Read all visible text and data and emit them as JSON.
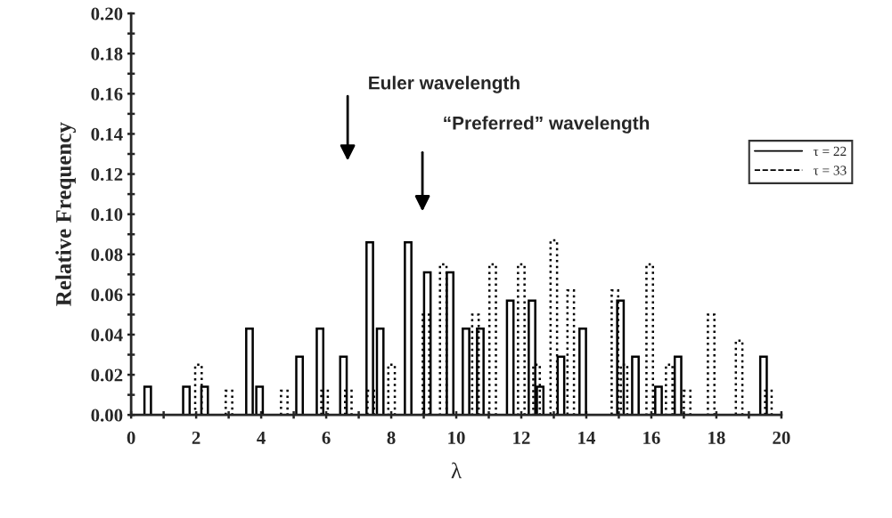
{
  "chart_data": {
    "type": "bar",
    "xlabel": "λ",
    "ylabel": "Relative Frequency",
    "xlim": [
      0,
      20
    ],
    "ylim": [
      0,
      0.2
    ],
    "xticks": [
      0,
      {
        "value": 1,
        "label": null
      },
      2,
      {
        "value": 3,
        "label": null
      },
      4,
      {
        "value": 5,
        "label": null
      },
      6,
      {
        "value": 7,
        "label": null
      },
      8,
      {
        "value": 9,
        "label": null
      },
      10,
      {
        "value": 11,
        "label": null
      },
      12,
      {
        "value": 13,
        "label": null
      },
      14,
      {
        "value": 15,
        "label": null
      },
      16,
      {
        "value": 17,
        "label": null
      },
      18,
      {
        "value": 19,
        "label": null
      },
      20
    ],
    "yticks": [
      {
        "value": 0,
        "label": "0.00"
      },
      {
        "value": 0.01,
        "label": null
      },
      {
        "value": 0.02,
        "label": "0.02"
      },
      {
        "value": 0.03,
        "label": null
      },
      {
        "value": 0.04,
        "label": "0.04"
      },
      {
        "value": 0.05,
        "label": null
      },
      {
        "value": 0.06,
        "label": "0.06"
      },
      {
        "value": 0.07,
        "label": null
      },
      {
        "value": 0.08,
        "label": "0.08"
      },
      {
        "value": 0.09,
        "label": null
      },
      {
        "value": 0.1,
        "label": "0.10"
      },
      {
        "value": 0.11,
        "label": null
      },
      {
        "value": 0.12,
        "label": "0.12"
      },
      {
        "value": 0.13,
        "label": null
      },
      {
        "value": 0.14,
        "label": "0.14"
      },
      {
        "value": 0.15,
        "label": null
      },
      {
        "value": 0.16,
        "label": "0.16"
      },
      {
        "value": 0.17,
        "label": null
      },
      {
        "value": 0.18,
        "label": "0.18"
      },
      {
        "value": 0.19,
        "label": null
      },
      {
        "value": 0.2,
        "label": "0.20"
      }
    ],
    "legend": "right",
    "grid": false,
    "series": [
      {
        "name": "τ = 22",
        "color": "#000000",
        "line_style": "solid",
        "x": [
          0.51,
          1.7,
          2.26,
          3.64,
          3.95,
          5.18,
          5.81,
          6.53,
          7.34,
          7.66,
          8.52,
          9.11,
          9.81,
          10.3,
          10.74,
          11.66,
          12.33,
          12.58,
          13.22,
          13.89,
          15.05,
          15.51,
          16.22,
          16.82,
          19.45
        ],
        "values": [
          0.014,
          0.014,
          0.014,
          0.043,
          0.014,
          0.029,
          0.043,
          0.029,
          0.086,
          0.043,
          0.086,
          0.071,
          0.071,
          0.043,
          0.043,
          0.057,
          0.057,
          0.014,
          0.029,
          0.043,
          0.057,
          0.029,
          0.014,
          0.029,
          0.029
        ]
      },
      {
        "name": "τ = 33",
        "color": "#000000",
        "line_style": "dotted",
        "x": [
          2.07,
          3.01,
          4.71,
          5.95,
          6.68,
          7.37,
          8.01,
          9.07,
          9.6,
          10.59,
          11.12,
          12.0,
          12.47,
          13.0,
          13.52,
          14.88,
          15.16,
          15.95,
          16.55,
          17.1,
          17.84,
          18.7,
          19.6
        ],
        "values": [
          0.025,
          0.012,
          0.012,
          0.012,
          0.012,
          0.012,
          0.025,
          0.05,
          0.075,
          0.05,
          0.075,
          0.075,
          0.025,
          0.087,
          0.062,
          0.062,
          0.025,
          0.075,
          0.025,
          0.012,
          0.05,
          0.037,
          0.012
        ]
      }
    ],
    "annotations": [
      "Euler wavelength",
      "“Preferred” wavelength"
    ]
  }
}
